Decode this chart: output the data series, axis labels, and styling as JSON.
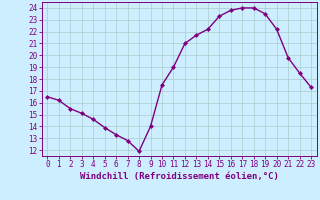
{
  "x": [
    0,
    1,
    2,
    3,
    4,
    5,
    6,
    7,
    8,
    9,
    10,
    11,
    12,
    13,
    14,
    15,
    16,
    17,
    18,
    19,
    20,
    21,
    22,
    23
  ],
  "y": [
    16.5,
    16.2,
    15.5,
    15.1,
    14.6,
    13.9,
    13.3,
    12.8,
    11.9,
    14.0,
    17.5,
    19.0,
    21.0,
    21.7,
    22.2,
    23.3,
    23.8,
    24.0,
    24.0,
    23.5,
    22.2,
    19.8,
    18.5,
    17.3
  ],
  "line_color": "#800080",
  "marker": "D",
  "marker_size": 2.0,
  "line_width": 1.0,
  "bg_color": "#cceeff",
  "ylim": [
    11.5,
    24.5
  ],
  "xlim": [
    -0.5,
    23.5
  ],
  "yticks": [
    12,
    13,
    14,
    15,
    16,
    17,
    18,
    19,
    20,
    21,
    22,
    23,
    24
  ],
  "xticks": [
    0,
    1,
    2,
    3,
    4,
    5,
    6,
    7,
    8,
    9,
    10,
    11,
    12,
    13,
    14,
    15,
    16,
    17,
    18,
    19,
    20,
    21,
    22,
    23
  ],
  "grid_color": "#aacccc",
  "tick_color": "#800080",
  "label_color": "#800080",
  "tick_fontsize": 5.5,
  "xlabel": "Windchill (Refroidissement éolien,°C)",
  "xlabel_fontsize": 6.5
}
